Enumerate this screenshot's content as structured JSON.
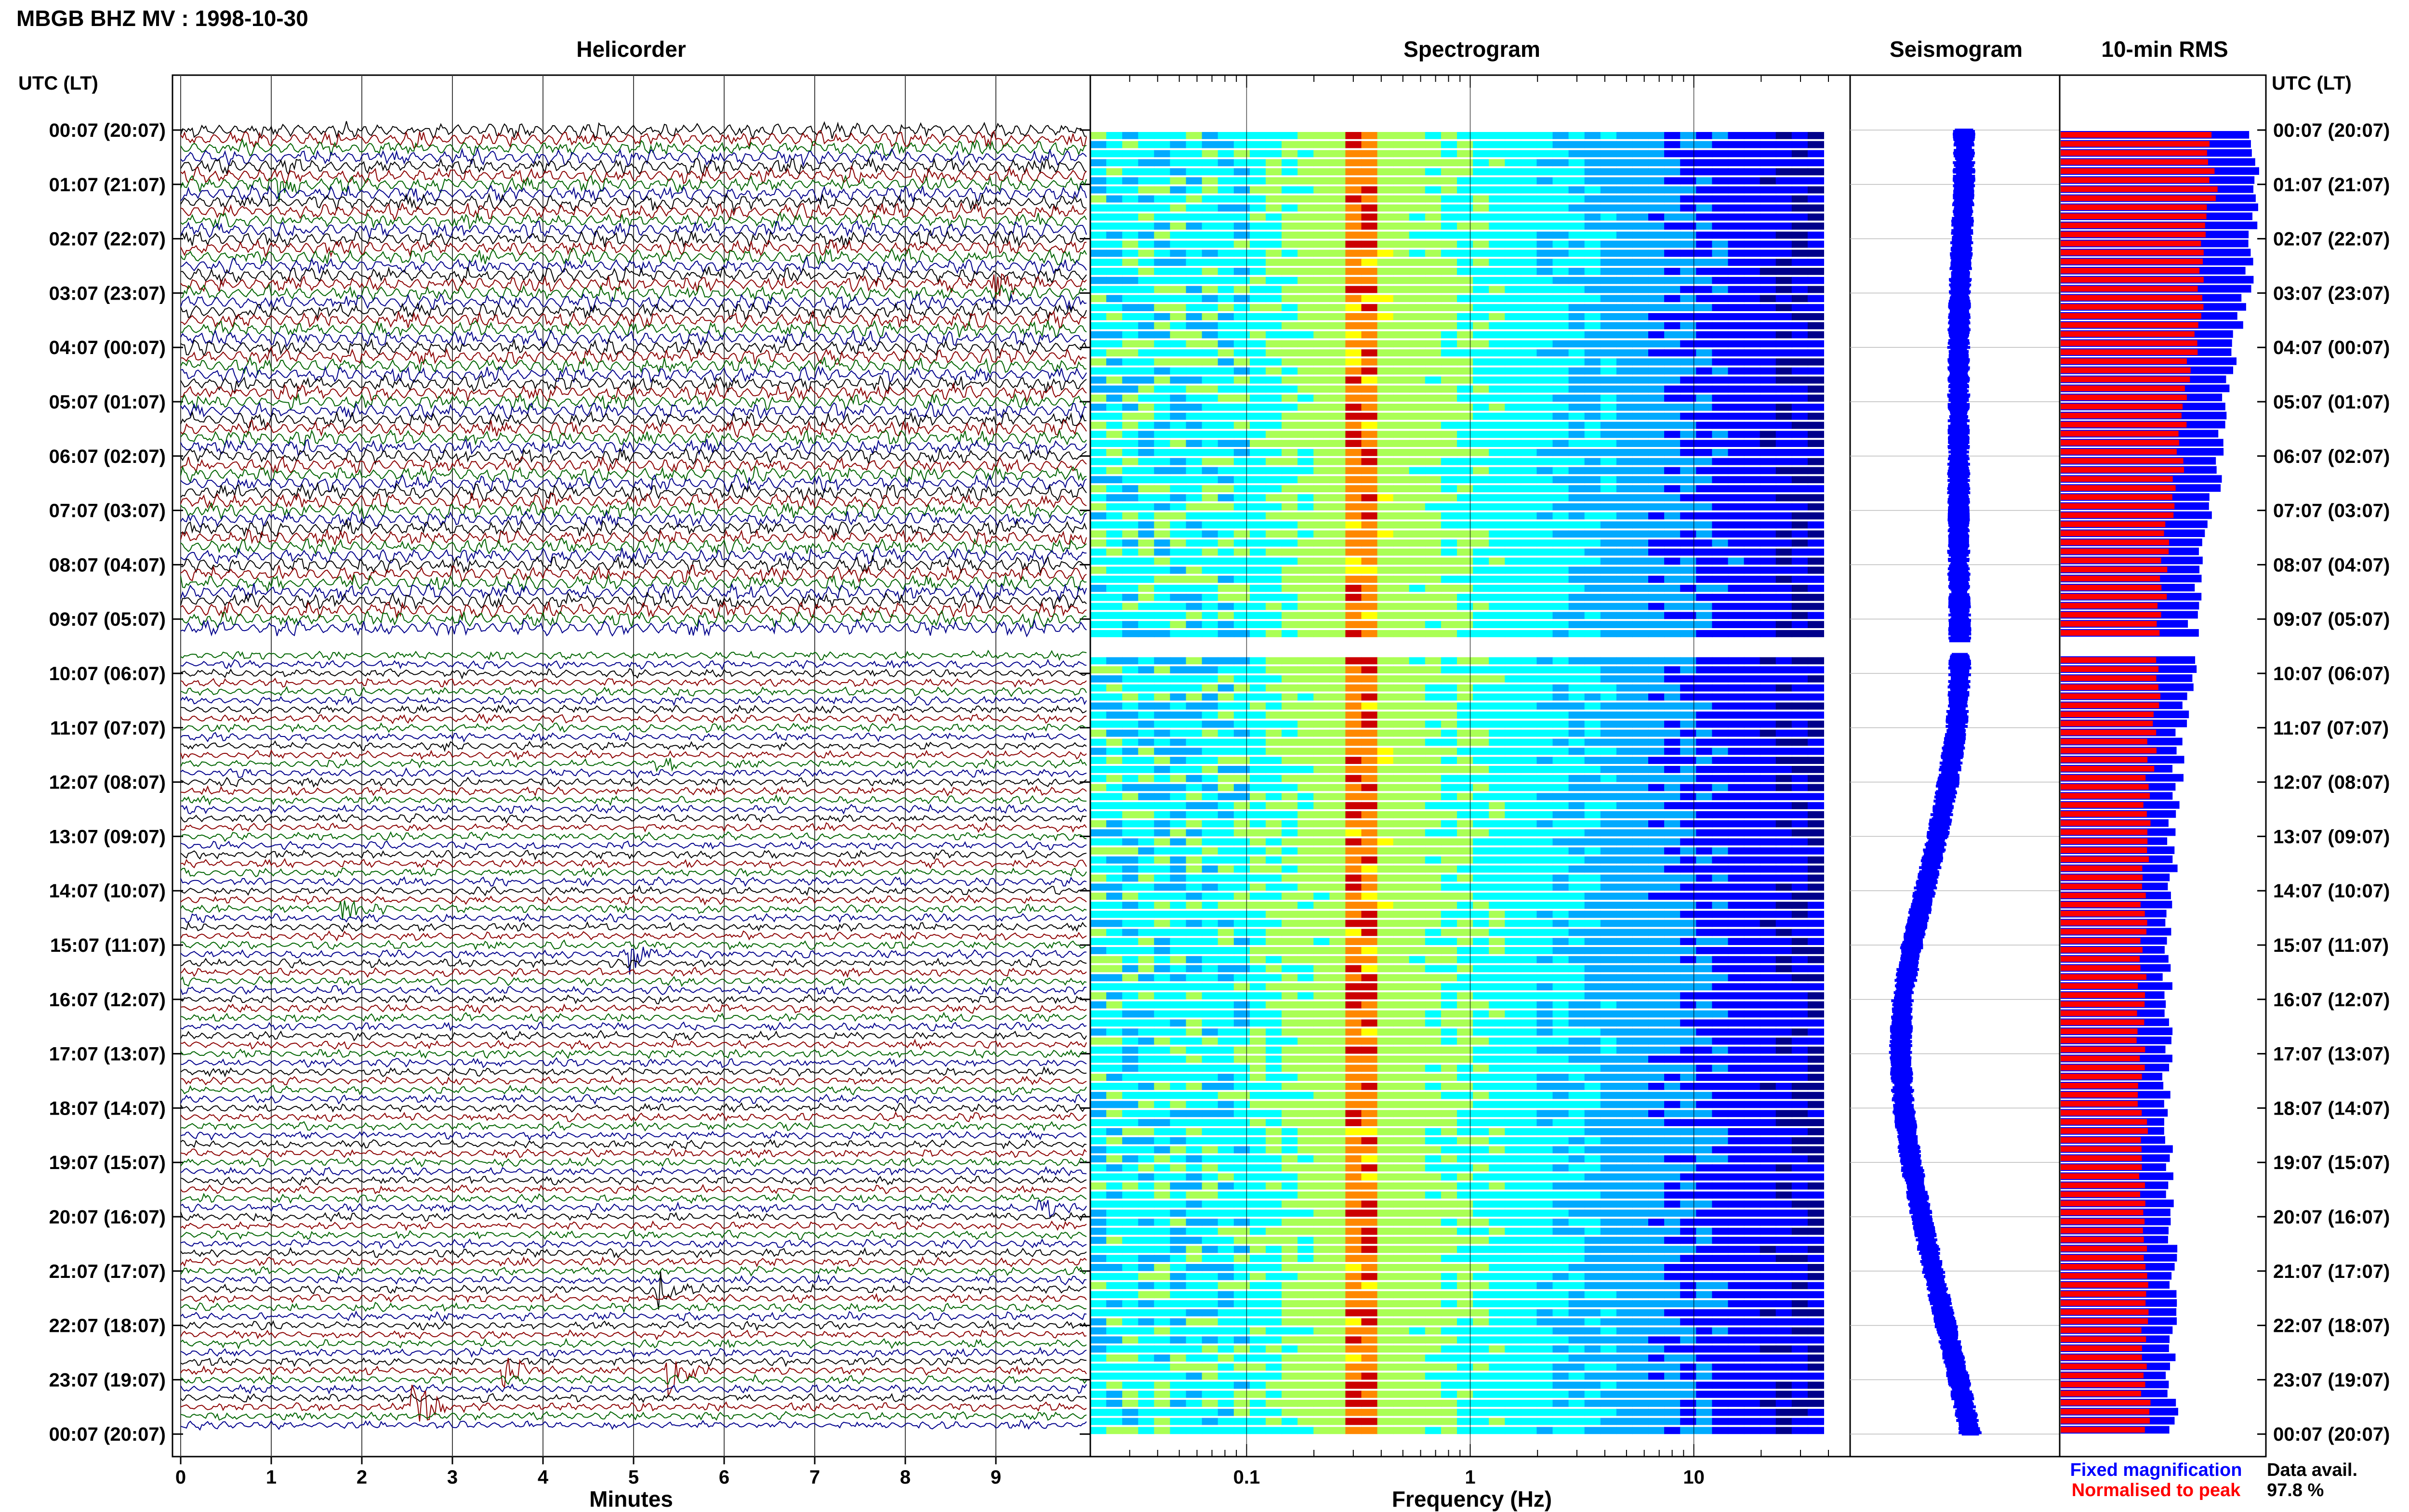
{
  "header": {
    "title": "MBGB BHZ MV : 1998-10-30",
    "utc_label": "UTC (LT)",
    "utc_label_right": "UTC (LT)"
  },
  "panels": {
    "helicorder": "Helicorder",
    "spectrogram": "Spectrogram",
    "seismogram": "Seismogram",
    "rms": "10-min RMS"
  },
  "legend": {
    "fixed": "Fixed magnification",
    "normalised": "Normalised to peak",
    "fixed_color": "#0000ff",
    "normalised_color": "#ff0000"
  },
  "data_avail": {
    "label": "Data avail.",
    "value": "97.8 %"
  },
  "chart_data": [
    {
      "type": "line",
      "panel": "Helicorder",
      "xlabel": "Minutes",
      "x_ticks": [
        "0",
        "1",
        "2",
        "3",
        "4",
        "5",
        "6",
        "7",
        "8",
        "9"
      ],
      "xlim": [
        0,
        10
      ],
      "row_interval_minutes": 10,
      "trace_colors": [
        "#000000",
        "#8b0000",
        "#006400",
        "#00008b"
      ],
      "row_labels": [
        "00:07 (20:07)",
        "01:07 (21:07)",
        "02:07 (22:07)",
        "03:07 (23:07)",
        "04:07 (00:07)",
        "05:07 (01:07)",
        "06:07 (02:07)",
        "07:07 (03:07)",
        "08:07 (04:07)",
        "09:07 (05:07)",
        "10:07 (06:07)",
        "11:07 (07:07)",
        "12:07 (08:07)",
        "13:07 (09:07)",
        "14:07 (10:07)",
        "15:07 (11:07)",
        "16:07 (12:07)",
        "17:07 (13:07)",
        "18:07 (14:07)",
        "19:07 (15:07)",
        "20:07 (16:07)",
        "21:07 (17:07)",
        "22:07 (18:07)",
        "23:07 (19:07)",
        "00:07 (20:07)"
      ],
      "data_gap_hours": [
        9.4,
        9.65
      ],
      "events": [
        {
          "hour": 0.95,
          "minute": 1.1,
          "amp": 1.6
        },
        {
          "hour": 2.8,
          "minute": 9.0,
          "amp": 1.8
        },
        {
          "hour": 11.7,
          "minute": 5.3,
          "amp": 1.0
        },
        {
          "hour": 14.4,
          "minute": 1.8,
          "amp": 1.6
        },
        {
          "hour": 15.2,
          "minute": 5.0,
          "amp": 2.0
        },
        {
          "hour": 19.9,
          "minute": 9.5,
          "amp": 1.4
        },
        {
          "hour": 21.4,
          "minute": 5.3,
          "amp": 2.5
        },
        {
          "hour": 22.9,
          "minute": 3.6,
          "amp": 2.2
        },
        {
          "hour": 22.8,
          "minute": 5.4,
          "amp": 2.6
        },
        {
          "hour": 23.5,
          "minute": 2.6,
          "amp": 3.0
        }
      ]
    },
    {
      "type": "heatmap",
      "panel": "Spectrogram",
      "xlabel": "Frequency (Hz)",
      "x_scale": "log",
      "xlim": [
        0.02,
        50
      ],
      "x_ticks": [
        0.1,
        1,
        10
      ],
      "colormap": [
        "#00008b",
        "#0000ff",
        "#00aaff",
        "#00ffff",
        "#aaff55",
        "#ffff00",
        "#ff8800",
        "#cc0000"
      ],
      "peak_hz": [
        0.3,
        0.4
      ],
      "data_gap_hours": [
        9.4,
        9.65
      ]
    },
    {
      "type": "line",
      "panel": "Seismogram",
      "series_color": "#0000ff",
      "hours": [
        0,
        1,
        2,
        3,
        4,
        5,
        6,
        7,
        8,
        9,
        10,
        11,
        12,
        13,
        14,
        15,
        16,
        17,
        18,
        19,
        20,
        21,
        22,
        23,
        24
      ],
      "offset": [
        0.62,
        0.62,
        0.6,
        0.58,
        0.57,
        0.57,
        0.57,
        0.57,
        0.57,
        0.58,
        0.58,
        0.55,
        0.47,
        0.37,
        0.25,
        0.13,
        0.04,
        0.02,
        0.05,
        0.12,
        0.22,
        0.33,
        0.45,
        0.57,
        0.68
      ],
      "data_gap_hours": [
        9.4,
        9.65
      ]
    },
    {
      "type": "bar",
      "panel": "10-min RMS",
      "orientation": "horizontal",
      "series": [
        {
          "name": "Fixed magnification",
          "color": "#0000ff",
          "hours": [
            0,
            1,
            2,
            3,
            4,
            5,
            6,
            7,
            8,
            9,
            10,
            11,
            12,
            13,
            14,
            15,
            16,
            17,
            18,
            19,
            20,
            21,
            22,
            23,
            24
          ],
          "values": [
            0.94,
            0.98,
            0.96,
            0.92,
            0.86,
            0.82,
            0.8,
            0.74,
            0.7,
            0.66,
            0.66,
            0.6,
            0.58,
            0.56,
            0.56,
            0.54,
            0.53,
            0.53,
            0.54,
            0.55,
            0.55,
            0.56,
            0.56,
            0.55,
            0.57
          ]
        },
        {
          "name": "Normalised to peak",
          "color": "#ff0000",
          "hours": [
            0,
            1,
            2,
            3,
            4,
            5,
            6,
            7,
            8,
            9,
            10,
            11,
            12,
            13,
            14,
            15,
            16,
            17,
            18,
            19,
            20,
            21,
            22,
            23,
            24
          ],
          "values": [
            0.74,
            0.76,
            0.72,
            0.7,
            0.66,
            0.62,
            0.6,
            0.55,
            0.52,
            0.5,
            0.48,
            0.46,
            0.44,
            0.43,
            0.42,
            0.41,
            0.4,
            0.4,
            0.41,
            0.41,
            0.42,
            0.42,
            0.42,
            0.42,
            0.43
          ]
        }
      ],
      "data_gap_hours": [
        9.4,
        9.65
      ]
    }
  ]
}
